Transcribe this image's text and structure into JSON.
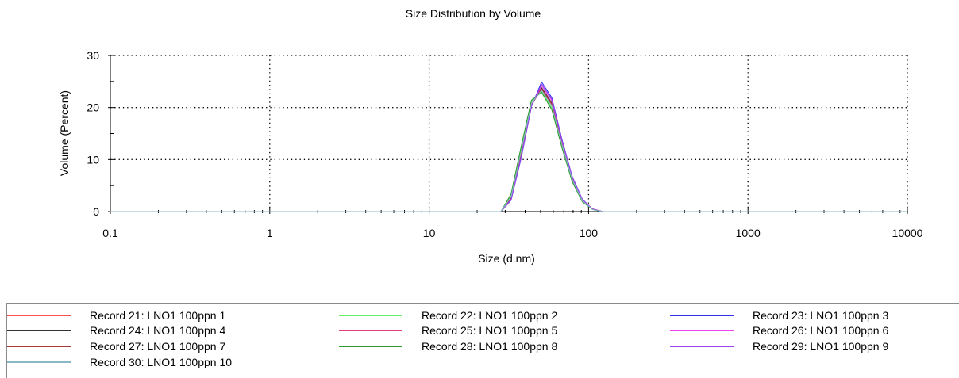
{
  "chart_data": {
    "type": "line",
    "title": "Size Distribution by Volume",
    "xlabel": "Size (d.nm)",
    "ylabel": "Volume (Percent)",
    "xscale": "log",
    "xlim": [
      0.1,
      10000
    ],
    "ylim": [
      0,
      30
    ],
    "xticks": [
      {
        "value": 0.1,
        "label": "0.1"
      },
      {
        "value": 1,
        "label": "1"
      },
      {
        "value": 10,
        "label": "10"
      },
      {
        "value": 100,
        "label": "100"
      },
      {
        "value": 1000,
        "label": "1000"
      },
      {
        "value": 10000,
        "label": "10000"
      }
    ],
    "yticks": [
      {
        "value": 0,
        "label": "0"
      },
      {
        "value": 10,
        "label": "10"
      },
      {
        "value": 20,
        "label": "20"
      },
      {
        "value": 30,
        "label": "30"
      }
    ],
    "grid": "dotted",
    "legend_position": "bottom",
    "x": [
      0.1,
      28.21,
      32.67,
      37.84,
      43.82,
      50.75,
      58.77,
      68.06,
      78.82,
      91.28,
      105.7,
      122.4,
      10000
    ],
    "series": [
      {
        "name": "Record 21: LNO1 100ppn 1",
        "color": "#ff4d4d",
        "values": [
          0,
          0,
          2.8,
          11.5,
          20.6,
          23.5,
          20.6,
          13.2,
          6.4,
          2.3,
          0.5,
          0,
          0
        ]
      },
      {
        "name": "Record 22: LNO1 100ppn 2",
        "color": "#66ee66",
        "values": [
          0,
          0,
          3.2,
          12.3,
          21.2,
          23.2,
          19.9,
          12.5,
          5.9,
          2.0,
          0.4,
          0,
          0
        ]
      },
      {
        "name": "Record 23: LNO1 100ppn 3",
        "color": "#3333ee",
        "values": [
          0,
          0,
          2.2,
          10.4,
          20.2,
          24.9,
          21.9,
          13.9,
          6.8,
          2.4,
          0.5,
          0,
          0
        ]
      },
      {
        "name": "Record 24: LNO1 100ppn 4",
        "color": "#333333",
        "values": [
          0,
          0,
          2.5,
          11.0,
          20.4,
          23.8,
          20.9,
          13.3,
          6.4,
          2.2,
          0.5,
          0,
          0
        ]
      },
      {
        "name": "Record 25: LNO1 100ppn 5",
        "color": "#e0407a",
        "values": [
          0,
          0,
          2.7,
          11.3,
          20.6,
          23.4,
          20.5,
          13.0,
          6.3,
          2.2,
          0.5,
          0,
          0
        ]
      },
      {
        "name": "Record 26: LNO1 100ppn 6",
        "color": "#ee44ee",
        "values": [
          0,
          0,
          2.4,
          10.8,
          20.3,
          24.2,
          21.3,
          13.6,
          6.6,
          2.3,
          0.5,
          0,
          0
        ]
      },
      {
        "name": "Record 27: LNO1 100ppn 7",
        "color": "#a83a3a",
        "values": [
          0,
          0,
          2.6,
          11.1,
          20.5,
          23.6,
          20.7,
          13.1,
          6.3,
          2.2,
          0.5,
          0,
          0
        ]
      },
      {
        "name": "Record 28: LNO1 100ppn 8",
        "color": "#2e9a2e",
        "values": [
          0,
          0,
          3.4,
          12.6,
          21.4,
          22.9,
          19.6,
          12.3,
          5.8,
          1.9,
          0.4,
          0,
          0
        ]
      },
      {
        "name": "Record 29: LNO1 100ppn 9",
        "color": "#9b44ee",
        "values": [
          0,
          0,
          2.3,
          10.6,
          20.3,
          24.5,
          21.6,
          13.7,
          6.7,
          2.3,
          0.5,
          0,
          0
        ]
      },
      {
        "name": "Record 30: LNO1 100ppn 10",
        "color": "#88b8c4",
        "values": [
          0,
          0,
          2.9,
          11.7,
          20.8,
          23.3,
          20.3,
          12.9,
          6.2,
          2.1,
          0.4,
          0,
          0
        ]
      }
    ]
  }
}
